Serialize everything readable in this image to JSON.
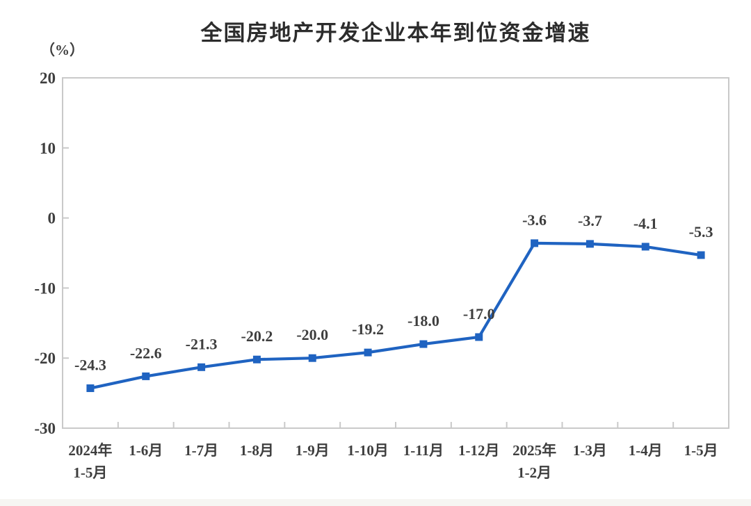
{
  "chart_data": {
    "type": "line",
    "title": "全国房地产开发企业本年到位资金增速",
    "unit_label": "（%）",
    "categories": [
      [
        "2024年",
        "1-5月"
      ],
      [
        "1-6月"
      ],
      [
        "1-7月"
      ],
      [
        "1-8月"
      ],
      [
        "1-9月"
      ],
      [
        "1-10月"
      ],
      [
        "1-11月"
      ],
      [
        "1-12月"
      ],
      [
        "2025年",
        "1-2月"
      ],
      [
        "1-3月"
      ],
      [
        "1-4月"
      ],
      [
        "1-5月"
      ]
    ],
    "values": [
      -24.3,
      -22.6,
      -21.3,
      -20.2,
      -20.0,
      -19.2,
      -18.0,
      -17.0,
      -3.6,
      -3.7,
      -4.1,
      -5.3
    ],
    "data_labels": [
      "-24.3",
      "-22.6",
      "-21.3",
      "-20.2",
      "-20.0",
      "-19.2",
      "-18.0",
      "-17.0",
      "-3.6",
      "-3.7",
      "-4.1",
      "-5.3"
    ],
    "ylim": [
      -30,
      20
    ],
    "yticks": [
      20,
      10,
      0,
      -10,
      -20,
      -30
    ],
    "ytick_labels": [
      "20",
      "10",
      "0",
      "-10",
      "-20",
      "-30"
    ],
    "xlabel": "",
    "ylabel": "（%）",
    "grid": false,
    "legend": "none",
    "marker": "square",
    "line_color": "#1f63c1",
    "colors": {
      "line": "#1f63c1",
      "marker": "#1f63c1",
      "title": "#2c2c2c",
      "label": "#3e3e3e",
      "axis": "#c9c9c9",
      "background": "#ffffff",
      "bottom_strip": "#f6f5f2"
    }
  }
}
